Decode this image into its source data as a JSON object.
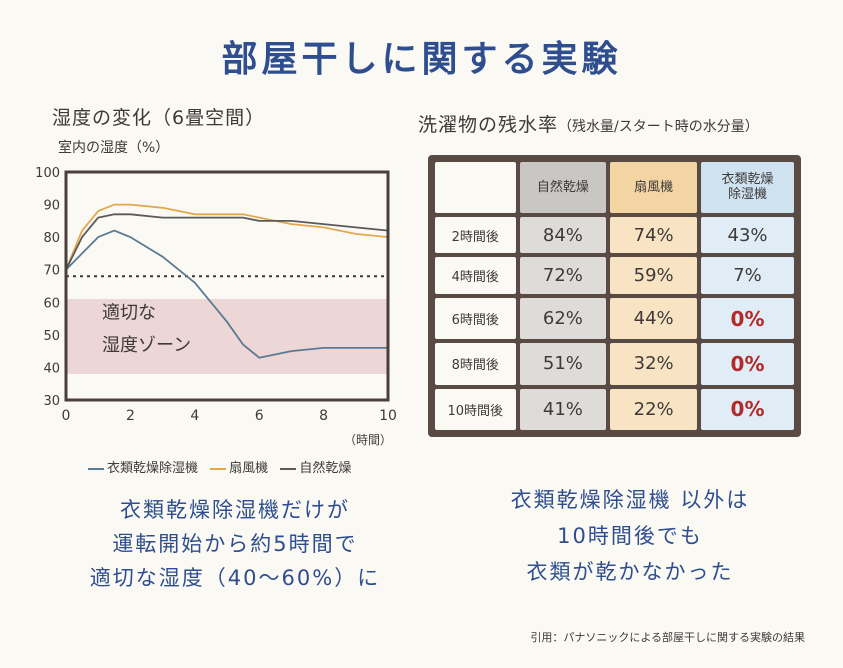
{
  "main_title": "部屋干しに関する実験",
  "left": {
    "title": "湿度の変化（6畳空間）",
    "subtitle": "室内の湿度（%）",
    "zone_label_1": "適切な",
    "zone_label_2": "湿度ゾーン",
    "legend": [
      "衣類乾燥除湿機",
      "扇風機",
      "自然乾燥"
    ],
    "message": [
      "衣類乾燥除湿機だけが",
      "運転開始から約5時間で",
      "適切な湿度（40～60%）に"
    ]
  },
  "right": {
    "title": "洗濯物の残水率",
    "title_note": "（残水量/スタート時の水分量）",
    "columns": [
      "自然乾燥",
      "扇風機",
      "衣類乾燥\n除湿機"
    ],
    "rows": [
      {
        "label": "2時間後",
        "values": [
          "84%",
          "74%",
          "43%"
        ]
      },
      {
        "label": "4時間後",
        "values": [
          "72%",
          "59%",
          "7%"
        ]
      },
      {
        "label": "6時間後",
        "values": [
          "62%",
          "44%",
          "0%"
        ]
      },
      {
        "label": "8時間後",
        "values": [
          "51%",
          "32%",
          "0%"
        ]
      },
      {
        "label": "10時間後",
        "values": [
          "41%",
          "22%",
          "0%"
        ]
      }
    ],
    "message": [
      "衣類乾燥除湿機 以外は",
      "10時間後でも",
      "衣類が乾かなかった"
    ]
  },
  "citation": "引用：パナソニックによる部屋干しに関する実験の結果",
  "colors": {
    "dehumidifier": "#5b7a93",
    "fan": "#e3a84c",
    "natural": "#5a5a5a",
    "zone": "#ecd6d6",
    "title": "#2f4e8f",
    "zero": "#b22a2a"
  },
  "chart_data": [
    {
      "type": "line",
      "xlabel": "（時間）",
      "ylabel": "室内の湿度（%）",
      "xlim": [
        0,
        10
      ],
      "ylim": [
        30,
        100
      ],
      "xticks": [
        0,
        2,
        4,
        6,
        8,
        10
      ],
      "yticks": [
        30,
        40,
        50,
        60,
        70,
        80,
        90,
        100
      ],
      "grid": false,
      "legend_position": "bottom",
      "band": {
        "from": 38,
        "to": 61,
        "label": "適切な湿度ゾーン"
      },
      "reference_line": {
        "y": 68,
        "style": "dotted"
      },
      "x": [
        0,
        0.5,
        1,
        1.5,
        2,
        3,
        4,
        5,
        5.5,
        6,
        7,
        8,
        9,
        10
      ],
      "series": [
        {
          "name": "衣類乾燥除湿機",
          "values": [
            70,
            75,
            80,
            82,
            80,
            74,
            66,
            54,
            47,
            43,
            45,
            46,
            46,
            46
          ]
        },
        {
          "name": "扇風機",
          "values": [
            70,
            82,
            88,
            90,
            90,
            89,
            87,
            87,
            87,
            86,
            84,
            83,
            81,
            80
          ]
        },
        {
          "name": "自然乾燥",
          "values": [
            70,
            80,
            86,
            87,
            87,
            86,
            86,
            86,
            86,
            85,
            85,
            84,
            83,
            82
          ]
        }
      ]
    },
    {
      "type": "table",
      "title": "洗濯物の残水率（残水量/スタート時の水分量）",
      "columns": [
        "自然乾燥",
        "扇風機",
        "衣類乾燥除湿機"
      ],
      "rows": [
        "2時間後",
        "4時間後",
        "6時間後",
        "8時間後",
        "10時間後"
      ],
      "values": [
        [
          84,
          74,
          43
        ],
        [
          72,
          59,
          7
        ],
        [
          62,
          44,
          0
        ],
        [
          51,
          32,
          0
        ],
        [
          41,
          22,
          0
        ]
      ],
      "unit": "%"
    }
  ]
}
